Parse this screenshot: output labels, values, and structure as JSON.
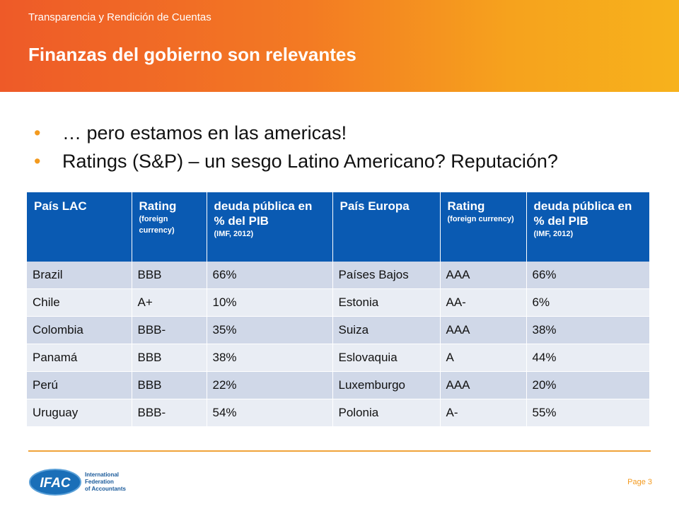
{
  "header": {
    "subtitle": "Transparencia y Rendición de Cuentas",
    "title": "Finanzas del gobierno son relevantes"
  },
  "bullets": [
    "… pero estamos en las americas!",
    "Ratings (S&P) – un sesgo Latino Americano? Reputación?"
  ],
  "table": {
    "headers": [
      {
        "main": "País LAC",
        "sub": ""
      },
      {
        "main": "Rating",
        "sub": "(foreign currency)"
      },
      {
        "main": "deuda pública en % del PIB",
        "sub": "(IMF, 2012)"
      },
      {
        "main": "País Europa",
        "sub": ""
      },
      {
        "main": "Rating",
        "sub": "(foreign currency)"
      },
      {
        "main": "deuda pública en % del PIB",
        "sub": "(IMF, 2012)"
      }
    ],
    "rows": [
      [
        "Brazil",
        "BBB",
        "66%",
        "Países Bajos",
        "AAA",
        "66%"
      ],
      [
        "Chile",
        "A+",
        "10%",
        "Estonia",
        "AA-",
        "6%"
      ],
      [
        "Colombia",
        "BBB-",
        "35%",
        "Suiza",
        "AAA",
        "38%"
      ],
      [
        "Panamá",
        "BBB",
        "38%",
        "Eslovaquia",
        "A",
        "44%"
      ],
      [
        "Perú",
        "BBB",
        "22%",
        "Luxemburgo",
        "AAA",
        "20%"
      ],
      [
        "Uruguay",
        "BBB-",
        "54%",
        "Polonia",
        "A-",
        "55%"
      ]
    ]
  },
  "footer": {
    "logo_text": "IFAC",
    "logo_line1": "International",
    "logo_line2": "Federation",
    "logo_line3": "of Accountants",
    "page_label": "Page 3"
  },
  "colors": {
    "accent_orange": "#f39a1e",
    "table_header": "#0a5ab2",
    "row_dark": "#d0d8e8",
    "row_light": "#e9edf4",
    "logo_blue": "#1a6fb8"
  }
}
